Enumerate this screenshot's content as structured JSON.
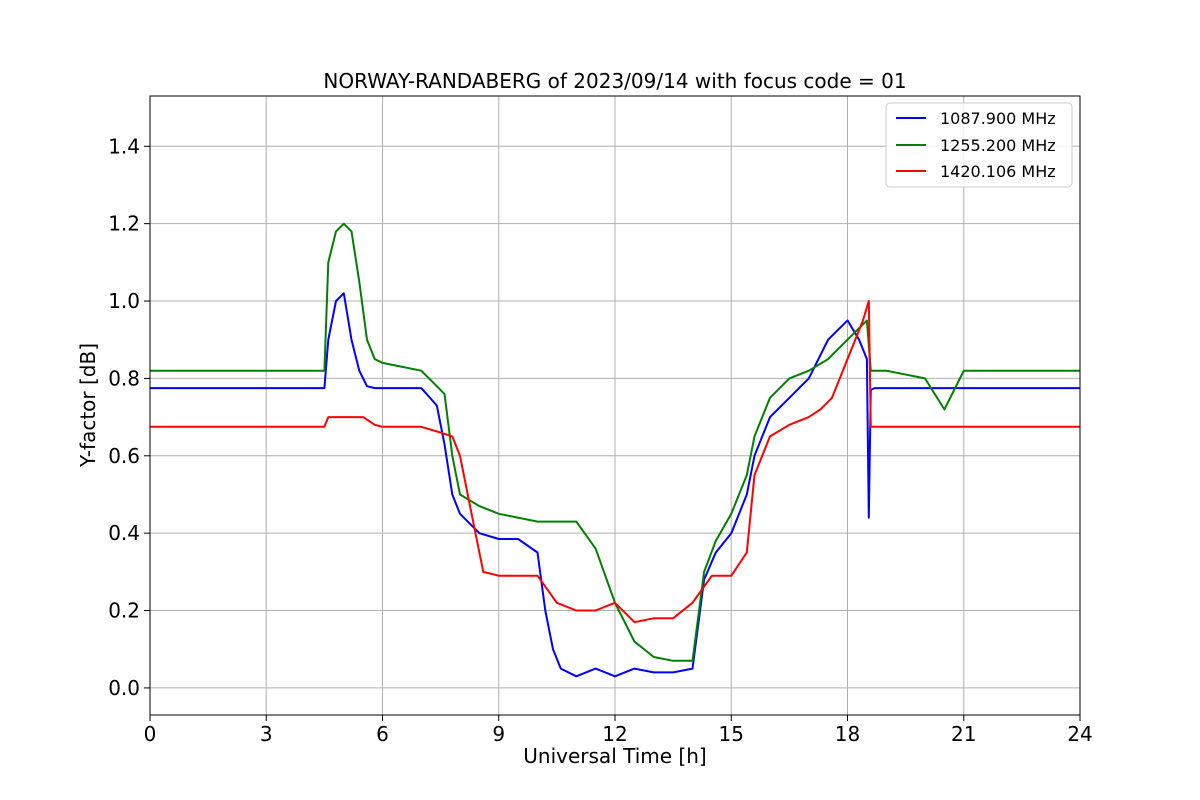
{
  "chart_data": {
    "type": "line",
    "title": "NORWAY-RANDABERG of 2023/09/14 with focus code = 01",
    "xlabel": "Universal Time [h]",
    "ylabel": "Y-factor [dB]",
    "xlim": [
      0,
      24
    ],
    "ylim": [
      -0.07,
      1.53
    ],
    "xticks": [
      0,
      3,
      6,
      9,
      12,
      15,
      18,
      21,
      24
    ],
    "xtick_labels": [
      "0",
      "3",
      "6",
      "9",
      "12",
      "15",
      "18",
      "21",
      "24"
    ],
    "yticks": [
      0.0,
      0.2,
      0.4,
      0.6,
      0.8,
      1.0,
      1.2,
      1.4
    ],
    "ytick_labels": [
      "0.0",
      "0.2",
      "0.4",
      "0.6",
      "0.8",
      "1.0",
      "1.2",
      "1.4"
    ],
    "grid": true,
    "legend_position": "top-right",
    "series": [
      {
        "name": "1087.900 MHz",
        "color": "#0000ff",
        "x": [
          0,
          4.5,
          4.6,
          4.8,
          5.0,
          5.2,
          5.4,
          5.6,
          5.8,
          6.0,
          7.0,
          7.4,
          7.6,
          7.8,
          8.0,
          8.5,
          9.0,
          9.5,
          10.0,
          10.2,
          10.4,
          10.6,
          11.0,
          11.5,
          12.0,
          12.5,
          13.0,
          13.5,
          14.0,
          14.3,
          14.6,
          15.0,
          15.4,
          15.6,
          16.0,
          16.5,
          17.0,
          17.5,
          18.0,
          18.3,
          18.5,
          18.55,
          18.6,
          18.7,
          19.0,
          21.0,
          24.0
        ],
        "y": [
          0.775,
          0.775,
          0.9,
          1.0,
          1.02,
          0.9,
          0.82,
          0.78,
          0.775,
          0.775,
          0.775,
          0.73,
          0.63,
          0.5,
          0.45,
          0.4,
          0.385,
          0.385,
          0.35,
          0.2,
          0.1,
          0.05,
          0.03,
          0.05,
          0.03,
          0.05,
          0.04,
          0.04,
          0.05,
          0.28,
          0.35,
          0.4,
          0.5,
          0.6,
          0.7,
          0.75,
          0.8,
          0.9,
          0.95,
          0.9,
          0.85,
          0.44,
          0.77,
          0.775,
          0.775,
          0.775,
          0.775
        ]
      },
      {
        "name": "1255.200 MHz",
        "color": "#008000",
        "x": [
          0,
          4.5,
          4.6,
          4.8,
          5.0,
          5.2,
          5.4,
          5.6,
          5.8,
          6.0,
          7.0,
          7.4,
          7.6,
          7.8,
          8.0,
          8.5,
          9.0,
          10.0,
          11.0,
          11.5,
          12.0,
          12.5,
          13.0,
          13.5,
          14.0,
          14.3,
          14.6,
          15.0,
          15.4,
          15.6,
          16.0,
          16.5,
          17.0,
          17.5,
          18.0,
          18.5,
          18.6,
          19.0,
          20.0,
          20.5,
          21.0,
          24.0
        ],
        "y": [
          0.82,
          0.82,
          1.1,
          1.18,
          1.2,
          1.18,
          1.05,
          0.9,
          0.85,
          0.84,
          0.82,
          0.78,
          0.76,
          0.6,
          0.5,
          0.47,
          0.45,
          0.43,
          0.43,
          0.36,
          0.22,
          0.12,
          0.08,
          0.07,
          0.07,
          0.3,
          0.38,
          0.45,
          0.55,
          0.65,
          0.75,
          0.8,
          0.82,
          0.85,
          0.9,
          0.95,
          0.82,
          0.82,
          0.8,
          0.72,
          0.82,
          0.82
        ]
      },
      {
        "name": "1420.106 MHz",
        "color": "#ff0000",
        "x": [
          0,
          4.5,
          4.6,
          5.0,
          5.5,
          5.8,
          6.0,
          7.0,
          7.5,
          7.8,
          8.0,
          8.3,
          8.6,
          9.0,
          9.5,
          10.0,
          10.5,
          11.0,
          11.5,
          12.0,
          12.5,
          13.0,
          13.5,
          14.0,
          14.5,
          15.0,
          15.4,
          15.6,
          16.0,
          16.5,
          17.0,
          17.3,
          17.6,
          17.8,
          18.0,
          18.2,
          18.4,
          18.55,
          18.6,
          18.7,
          19.0,
          21.0,
          24.0
        ],
        "y": [
          0.675,
          0.675,
          0.7,
          0.7,
          0.7,
          0.68,
          0.675,
          0.675,
          0.66,
          0.65,
          0.6,
          0.45,
          0.3,
          0.29,
          0.29,
          0.29,
          0.22,
          0.2,
          0.2,
          0.22,
          0.17,
          0.18,
          0.18,
          0.22,
          0.29,
          0.29,
          0.35,
          0.55,
          0.65,
          0.68,
          0.7,
          0.72,
          0.75,
          0.8,
          0.85,
          0.9,
          0.95,
          1.0,
          0.675,
          0.675,
          0.675,
          0.675,
          0.675
        ]
      }
    ]
  }
}
